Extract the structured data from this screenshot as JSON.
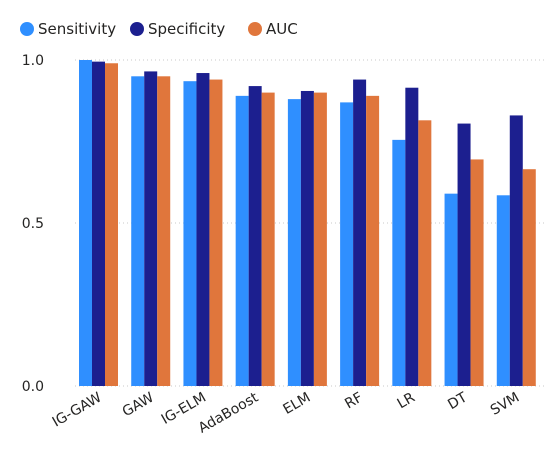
{
  "chart_data": {
    "type": "bar",
    "title": "",
    "xlabel": "",
    "ylabel": "",
    "ylim": [
      0,
      1
    ],
    "yticks": [
      "0.0",
      "0.5",
      "1.0"
    ],
    "grid": true,
    "legend_position": "top-left",
    "categories": [
      "IG-GAW",
      "GAW",
      "IG-ELM",
      "AdaBoost",
      "ELM",
      "RF",
      "LR",
      "DT",
      "SVM"
    ],
    "series": [
      {
        "name": "Sensitivity",
        "color": "#2f8fff",
        "values": [
          1.0,
          0.95,
          0.935,
          0.89,
          0.88,
          0.87,
          0.755,
          0.59,
          0.585
        ]
      },
      {
        "name": "Specificity",
        "color": "#1c1f8f",
        "values": [
          0.995,
          0.965,
          0.96,
          0.92,
          0.905,
          0.94,
          0.915,
          0.805,
          0.83
        ]
      },
      {
        "name": "AUC",
        "color": "#e0763c",
        "values": [
          0.99,
          0.95,
          0.94,
          0.9,
          0.9,
          0.89,
          0.815,
          0.695,
          0.665
        ]
      }
    ]
  }
}
